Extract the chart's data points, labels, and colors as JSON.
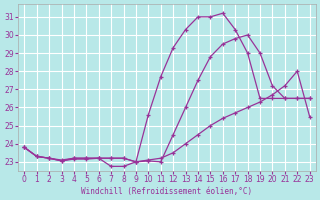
{
  "xlabel": "Windchill (Refroidissement éolien,°C)",
  "bg_color": "#b8e8e8",
  "grid_color": "#ffffff",
  "line_color": "#993399",
  "xlim": [
    -0.5,
    23.5
  ],
  "ylim": [
    22.5,
    31.7
  ],
  "yticks": [
    23,
    24,
    25,
    26,
    27,
    28,
    29,
    30,
    31
  ],
  "xticks": [
    0,
    1,
    2,
    3,
    4,
    5,
    6,
    7,
    8,
    9,
    10,
    11,
    12,
    13,
    14,
    15,
    16,
    17,
    18,
    19,
    20,
    21,
    22,
    23
  ],
  "line1_x": [
    0,
    1,
    2,
    3,
    4,
    5,
    6,
    7,
    8,
    9,
    10,
    11,
    12,
    13,
    14,
    15,
    16,
    17,
    18,
    19,
    20,
    21,
    22,
    23
  ],
  "line1_y": [
    23.8,
    23.3,
    23.2,
    23.1,
    23.2,
    23.2,
    23.2,
    22.75,
    22.75,
    23.0,
    25.6,
    27.7,
    29.3,
    30.3,
    31.0,
    31.0,
    31.2,
    30.3,
    29.0,
    26.5,
    26.5,
    26.5,
    26.5,
    26.5
  ],
  "line2_x": [
    0,
    1,
    2,
    3,
    4,
    5,
    6,
    7,
    8,
    9,
    10,
    11,
    12,
    13,
    14,
    15,
    16,
    17,
    18,
    19,
    20,
    21,
    22,
    23
  ],
  "line2_y": [
    23.8,
    23.3,
    23.2,
    23.05,
    23.2,
    23.2,
    23.2,
    23.2,
    23.2,
    23.0,
    23.05,
    23.0,
    24.5,
    26.0,
    27.5,
    28.8,
    29.5,
    29.8,
    30.0,
    29.0,
    27.2,
    26.5,
    26.5,
    26.5
  ],
  "line3_x": [
    0,
    1,
    2,
    3,
    4,
    5,
    6,
    7,
    8,
    9,
    10,
    11,
    12,
    13,
    14,
    15,
    16,
    17,
    18,
    19,
    20,
    21,
    22,
    23
  ],
  "line3_y": [
    23.8,
    23.3,
    23.2,
    23.05,
    23.15,
    23.15,
    23.2,
    23.2,
    23.2,
    23.0,
    23.1,
    23.2,
    23.5,
    24.0,
    24.5,
    25.0,
    25.4,
    25.7,
    26.0,
    26.3,
    26.7,
    27.2,
    28.0,
    25.5
  ]
}
